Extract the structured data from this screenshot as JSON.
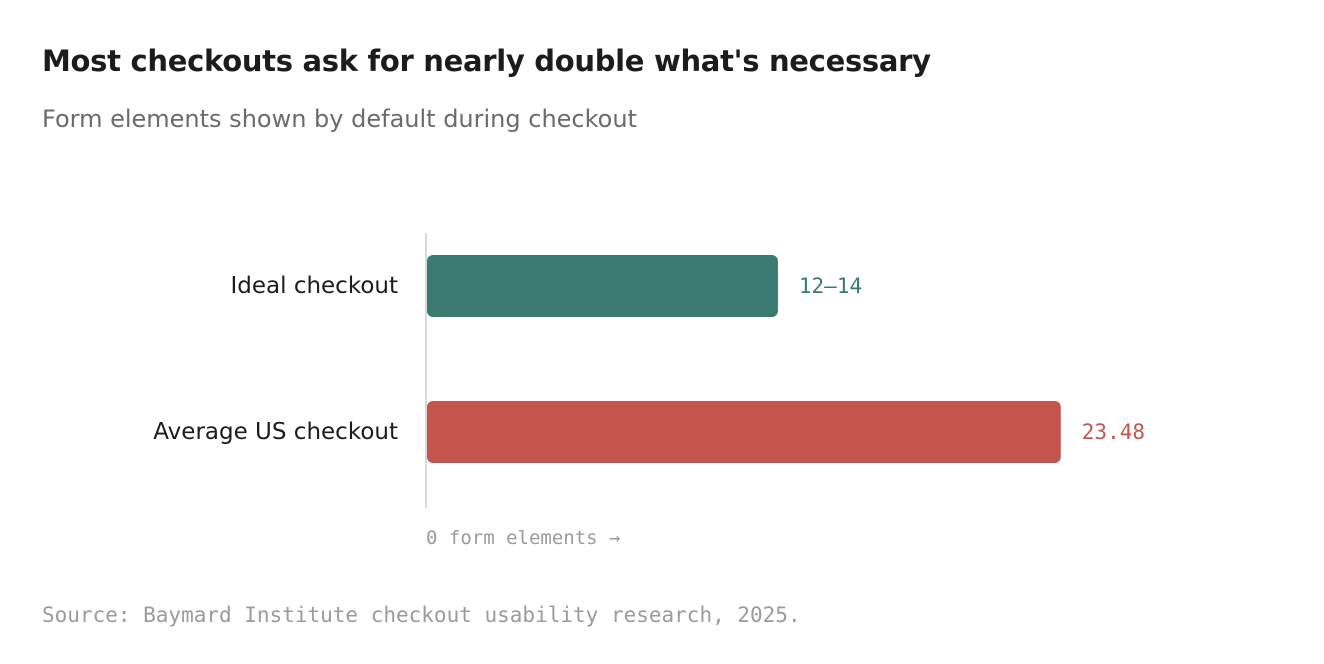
{
  "chart_data": {
    "type": "bar",
    "orientation": "horizontal",
    "title": "Most checkouts ask for nearly double what's necessary",
    "subtitle": "Form elements shown by default during checkout",
    "categories": [
      "Ideal checkout",
      "Average US checkout"
    ],
    "values": [
      13,
      23.48
    ],
    "ranges": [
      [
        12,
        14
      ],
      null
    ],
    "value_labels": [
      "12–14",
      "23.48"
    ],
    "bar_colors": [
      "#3b7a70",
      "#c4544d"
    ],
    "axis_note": "0 form elements →",
    "xlim": [
      0,
      26.6
    ],
    "grid": false,
    "legend": "none",
    "source": "Source: Baymard Institute checkout usability research, 2025."
  }
}
